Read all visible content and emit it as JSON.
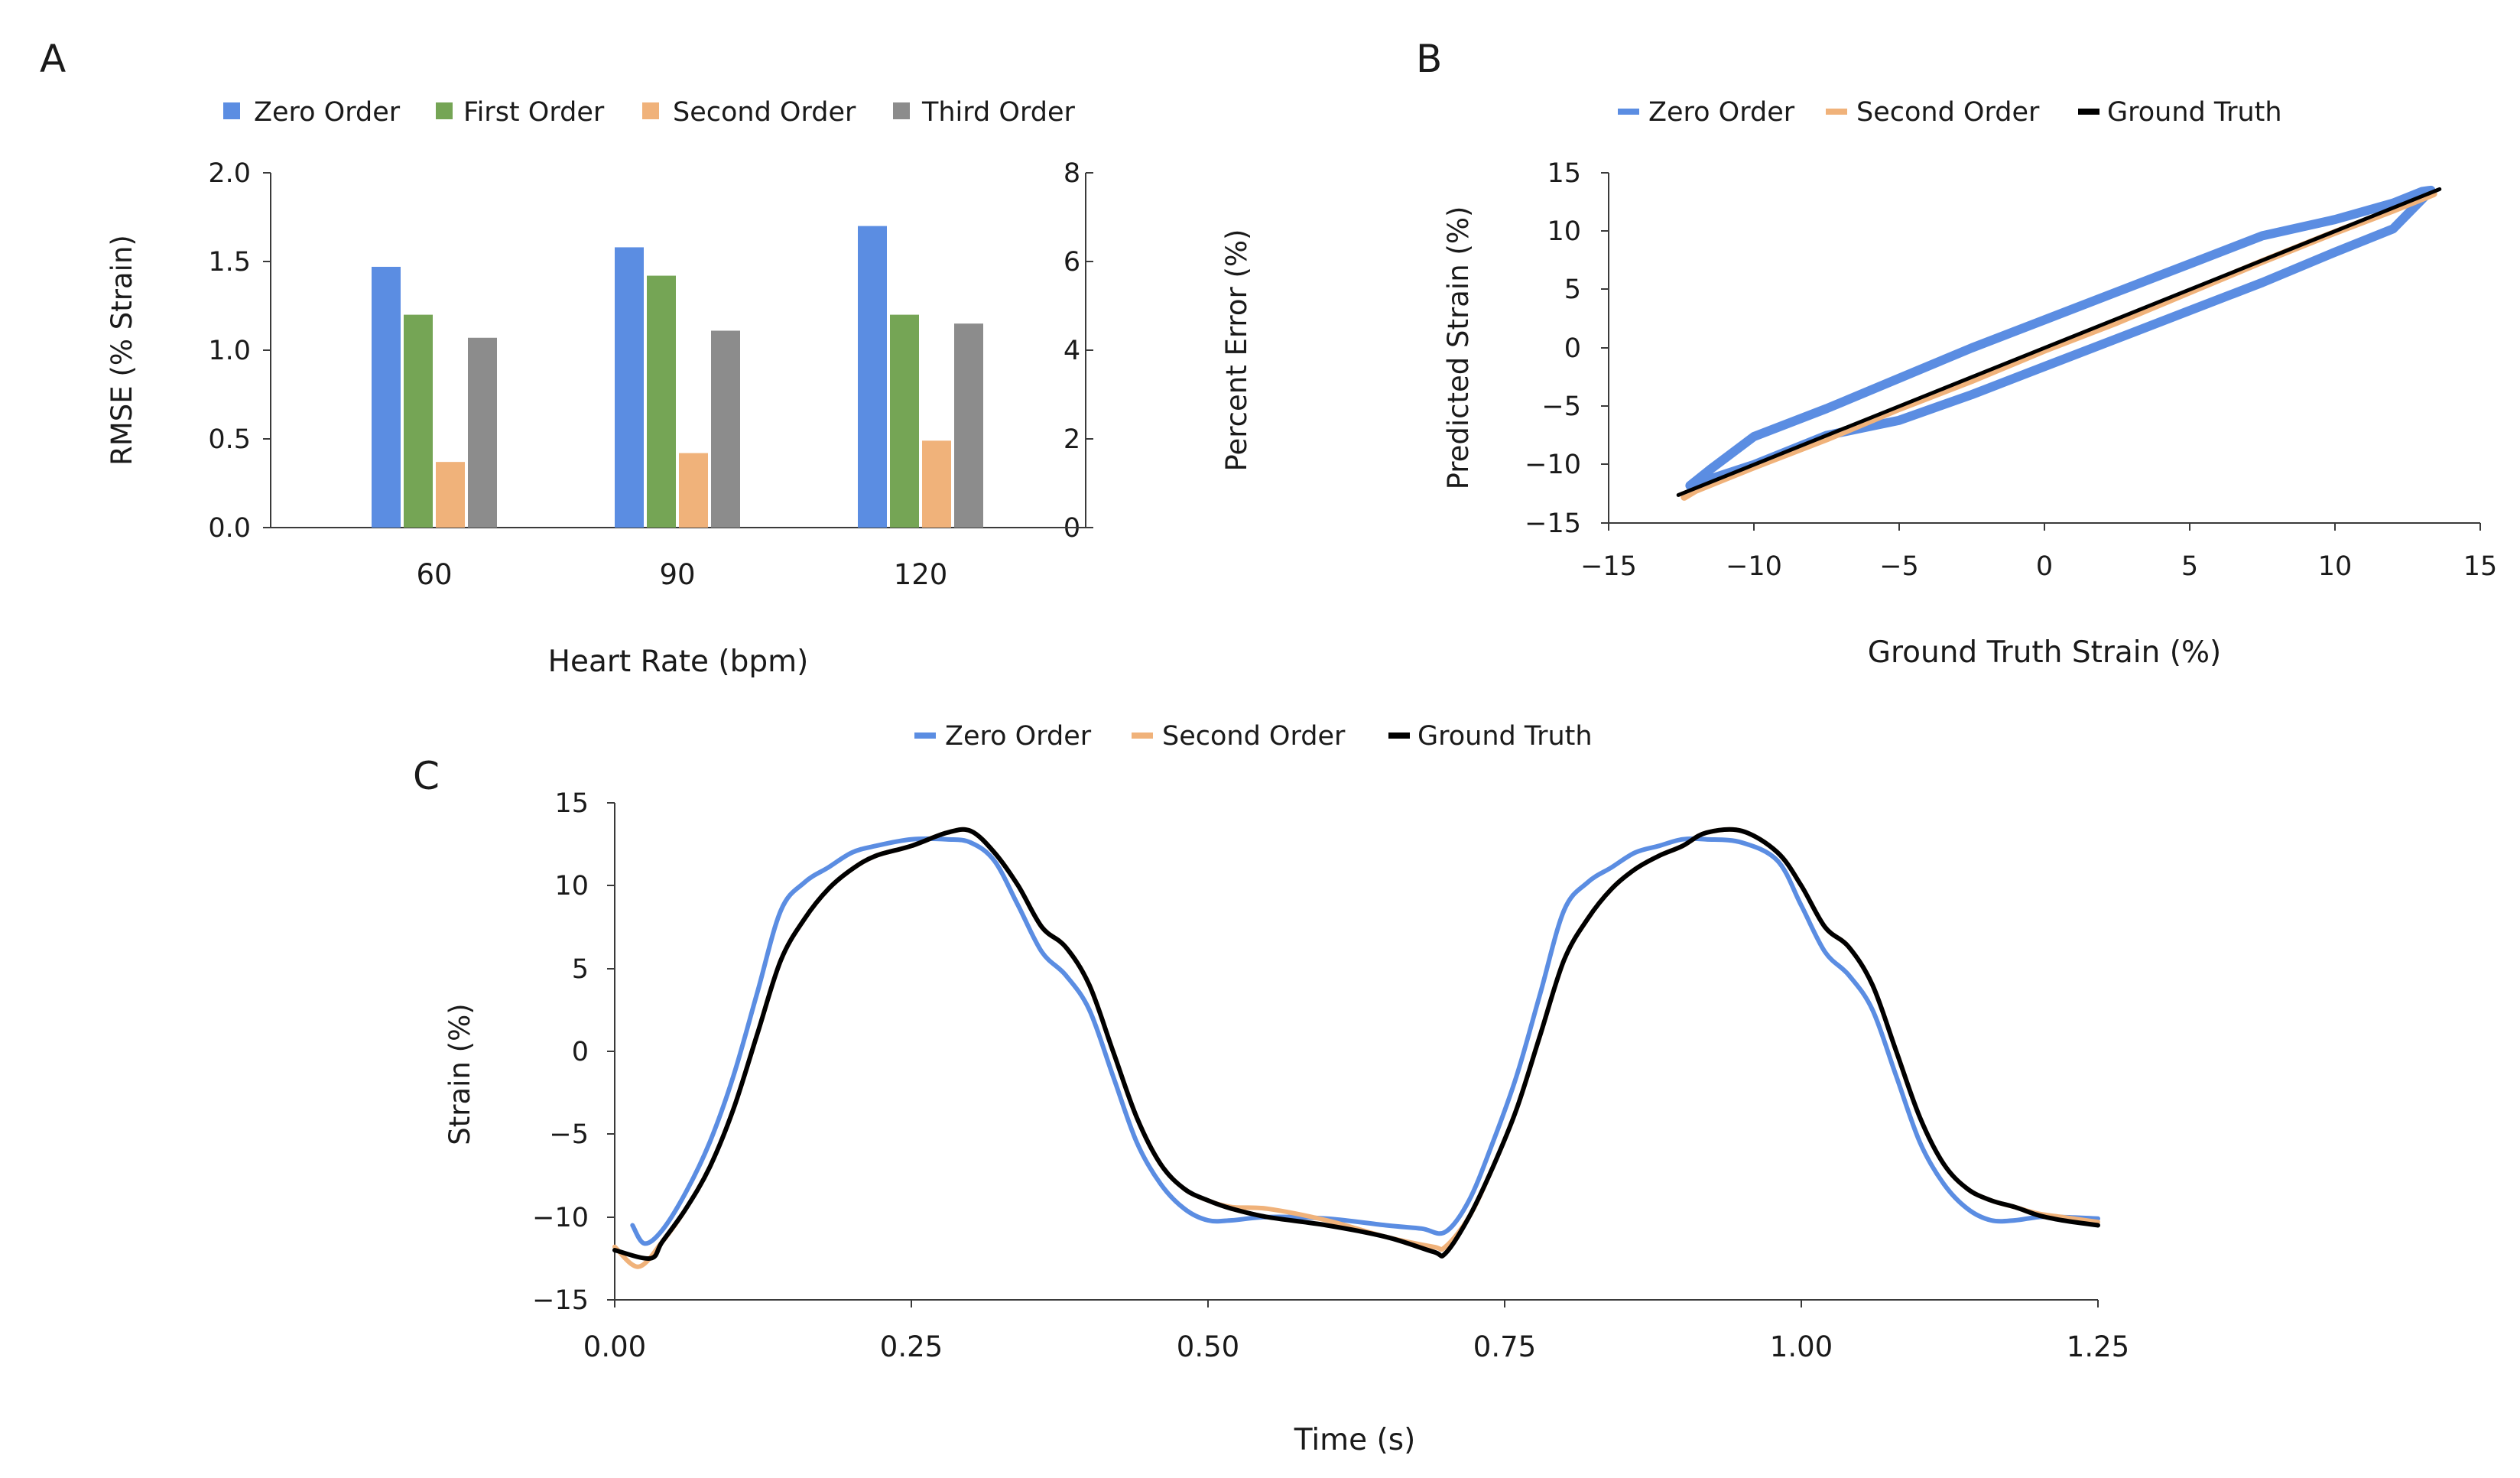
{
  "panel_labels": {
    "a": "A",
    "b": "B",
    "c": "C"
  },
  "colors": {
    "zero": "#5b8de2",
    "first": "#75a555",
    "second": "#f0b27a",
    "third": "#8c8c8c",
    "truth": "#000000",
    "axis": "#3a3a3a"
  },
  "chart_data": [
    {
      "id": "A",
      "type": "bar",
      "title": "",
      "xlabel": "Heart Rate (bpm)",
      "ylabel": "RMSE (% Strain)",
      "y2label": "Percent Error (%)",
      "categories": [
        "60",
        "90",
        "120"
      ],
      "ylim": [
        0,
        2
      ],
      "yticks": [
        "0.0",
        "0.5",
        "1.0",
        "1.5",
        "2.0"
      ],
      "y2lim": [
        0,
        8
      ],
      "y2ticks": [
        "0",
        "2",
        "4",
        "6",
        "8"
      ],
      "legend_position": "top",
      "series": [
        {
          "name": "Zero Order",
          "values": [
            1.47,
            1.58,
            1.7
          ]
        },
        {
          "name": "First Order",
          "values": [
            1.2,
            1.42,
            1.2
          ]
        },
        {
          "name": "Second Order",
          "values": [
            0.37,
            0.42,
            0.49
          ]
        },
        {
          "name": "Third Order",
          "values": [
            1.07,
            1.11,
            1.15
          ]
        }
      ]
    },
    {
      "id": "B",
      "type": "line",
      "xlabel": "Ground Truth Strain (%)",
      "ylabel": "Predicted Strain (%)",
      "xlim": [
        -15,
        15
      ],
      "ylim": [
        -15,
        15
      ],
      "xticks": [
        "−15",
        "−10",
        "−5",
        "0",
        "5",
        "10",
        "15"
      ],
      "yticks": [
        "−15",
        "−10",
        "−5",
        "0",
        "5",
        "10",
        "15"
      ],
      "legend_position": "top",
      "series": [
        {
          "name": "Zero Order",
          "x": [
            -12.2,
            -10,
            -7.5,
            -5,
            -2.5,
            0,
            2.5,
            5,
            7.5,
            10,
            12,
            13.3,
            13,
            12,
            10,
            7.5,
            5,
            2.5,
            0,
            -2.5,
            -5,
            -7.5,
            -10,
            -11.5,
            -12.2
          ],
          "y": [
            -11.8,
            -10,
            -7.5,
            -6.2,
            -4,
            -1.6,
            0.8,
            3.2,
            5.6,
            8.2,
            10.2,
            13.5,
            13.4,
            12.4,
            11,
            9.6,
            7.2,
            4.8,
            2.4,
            0,
            -2.6,
            -5.2,
            -7.6,
            -10.4,
            -11.8
          ]
        },
        {
          "name": "Second Order",
          "x": [
            -12.4,
            -12,
            -10,
            -7.5,
            -5,
            -2.5,
            0,
            2.5,
            5,
            7.5,
            10,
            12,
            13.4
          ],
          "y": [
            -12.8,
            -12.2,
            -10.2,
            -7.8,
            -5.2,
            -2.8,
            -0.2,
            2.2,
            4.8,
            7.4,
            9.9,
            11.8,
            13.2
          ]
        },
        {
          "name": "Ground Truth",
          "x": [
            -12.6,
            13.6
          ],
          "y": [
            -12.6,
            13.6
          ]
        }
      ]
    },
    {
      "id": "C",
      "type": "line",
      "xlabel": "Time (s)",
      "ylabel": "Strain (%)",
      "xlim": [
        0,
        1.25
      ],
      "ylim": [
        -15,
        15
      ],
      "xticks": [
        "0.00",
        "0.25",
        "0.50",
        "0.75",
        "1.00",
        "1.25"
      ],
      "yticks": [
        "−15",
        "−10",
        "−5",
        "0",
        "5",
        "10",
        "15"
      ],
      "legend_position": "top",
      "series": [
        {
          "name": "Zero Order",
          "x": [
            0.015,
            0.025,
            0.04,
            0.06,
            0.08,
            0.1,
            0.12,
            0.14,
            0.16,
            0.18,
            0.2,
            0.22,
            0.25,
            0.28,
            0.3,
            0.32,
            0.34,
            0.36,
            0.38,
            0.4,
            0.42,
            0.44,
            0.46,
            0.48,
            0.5,
            0.52,
            0.55,
            0.6,
            0.65,
            0.68,
            0.7,
            0.72,
            0.74,
            0.76,
            0.78,
            0.8,
            0.82,
            0.84,
            0.86,
            0.88,
            0.9,
            0.92,
            0.95,
            0.98,
            1.0,
            1.02,
            1.04,
            1.06,
            1.08,
            1.1,
            1.12,
            1.14,
            1.16,
            1.18,
            1.2,
            1.22,
            1.25
          ],
          "y": [
            -10.5,
            -11.6,
            -10.8,
            -8.5,
            -5.5,
            -1.5,
            3.5,
            8.5,
            10.2,
            11.1,
            12,
            12.4,
            12.8,
            12.8,
            12.6,
            11.5,
            8.8,
            6,
            4.6,
            2.5,
            -1.5,
            -5.5,
            -8,
            -9.5,
            -10.2,
            -10.2,
            -10,
            -10.1,
            -10.5,
            -10.7,
            -10.9,
            -9,
            -5.5,
            -1.5,
            3.5,
            8.5,
            10.2,
            11.1,
            12,
            12.4,
            12.8,
            12.8,
            12.6,
            11.5,
            8.8,
            6,
            4.6,
            2.5,
            -1.5,
            -5.5,
            -8,
            -9.5,
            -10.2,
            -10.2,
            -10,
            -10,
            -10.1
          ]
        },
        {
          "name": "Second Order",
          "x": [
            0.0,
            0.02,
            0.04,
            0.06,
            0.08,
            0.1,
            0.12,
            0.14,
            0.16,
            0.18,
            0.2,
            0.22,
            0.25,
            0.28,
            0.3,
            0.32,
            0.34,
            0.36,
            0.38,
            0.4,
            0.42,
            0.44,
            0.46,
            0.48,
            0.5,
            0.52,
            0.55,
            0.6,
            0.65,
            0.69,
            0.7,
            0.72,
            0.74,
            0.76,
            0.78,
            0.8,
            0.82,
            0.84,
            0.86,
            0.88,
            0.9,
            0.92,
            0.95,
            0.98,
            1.0,
            1.02,
            1.04,
            1.06,
            1.08,
            1.1,
            1.12,
            1.14,
            1.16,
            1.18,
            1.2,
            1.22,
            1.25
          ],
          "y": [
            -11.8,
            -13,
            -11.5,
            -9.5,
            -7,
            -3.5,
            1,
            5.5,
            8,
            9.8,
            11,
            11.8,
            12.4,
            13.2,
            13.3,
            12,
            10,
            7.5,
            6.3,
            4,
            0,
            -4,
            -6.8,
            -8.3,
            -9,
            -9.4,
            -9.5,
            -10.2,
            -11.2,
            -11.8,
            -11.8,
            -10,
            -7,
            -3.5,
            1,
            5.5,
            8,
            9.8,
            11,
            11.8,
            12.4,
            13.2,
            13.3,
            12,
            10,
            7.5,
            6.3,
            4,
            0,
            -4,
            -6.8,
            -8.3,
            -9,
            -9.4,
            -9.8,
            -10,
            -10.3
          ]
        },
        {
          "name": "Ground Truth",
          "x": [
            0.0,
            0.03,
            0.04,
            0.06,
            0.08,
            0.1,
            0.12,
            0.14,
            0.16,
            0.18,
            0.2,
            0.22,
            0.25,
            0.28,
            0.3,
            0.32,
            0.34,
            0.36,
            0.38,
            0.4,
            0.42,
            0.44,
            0.46,
            0.48,
            0.5,
            0.52,
            0.55,
            0.6,
            0.65,
            0.69,
            0.7,
            0.72,
            0.74,
            0.76,
            0.78,
            0.8,
            0.82,
            0.84,
            0.86,
            0.88,
            0.9,
            0.92,
            0.95,
            0.98,
            1.0,
            1.02,
            1.04,
            1.06,
            1.08,
            1.1,
            1.12,
            1.14,
            1.16,
            1.18,
            1.2,
            1.22,
            1.25
          ],
          "y": [
            -12,
            -12.5,
            -11.5,
            -9.5,
            -7,
            -3.5,
            1,
            5.5,
            8,
            9.8,
            11,
            11.8,
            12.4,
            13.2,
            13.3,
            12,
            10,
            7.5,
            6.3,
            4,
            0,
            -4,
            -6.8,
            -8.3,
            -9,
            -9.5,
            -10,
            -10.5,
            -11.2,
            -12.1,
            -12.2,
            -10,
            -7,
            -3.5,
            1,
            5.5,
            8,
            9.8,
            11,
            11.8,
            12.4,
            13.2,
            13.3,
            12,
            10,
            7.5,
            6.3,
            4,
            0,
            -4,
            -6.8,
            -8.3,
            -9,
            -9.4,
            -9.9,
            -10.2,
            -10.5
          ]
        }
      ]
    }
  ]
}
